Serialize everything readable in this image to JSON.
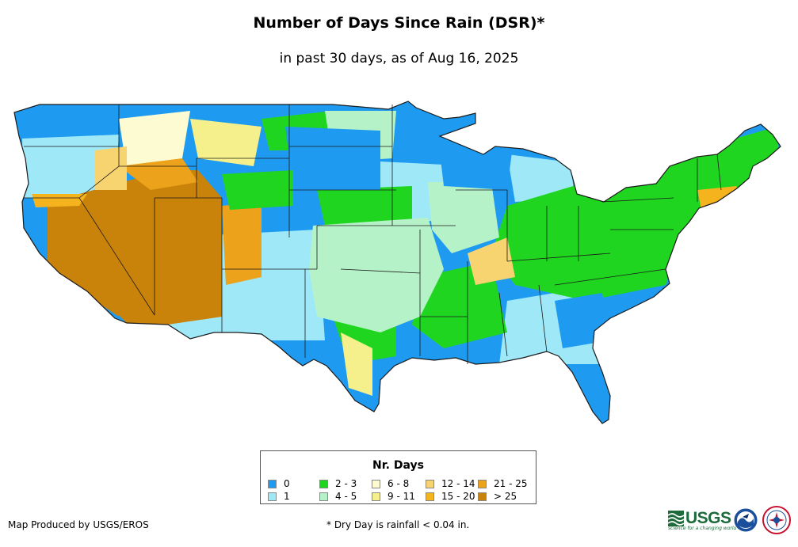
{
  "title": "Number of Days Since Rain (DSR)*",
  "subtitle": "in past 30 days, as of Aug 16, 2025",
  "legend": {
    "title": "Nr. Days",
    "items": [
      {
        "label": "0",
        "color": "#1e9bf0"
      },
      {
        "label": "1",
        "color": "#9fe8f8"
      },
      {
        "label": "2 - 3",
        "color": "#1fd51f"
      },
      {
        "label": "4 - 5",
        "color": "#b6f2c8"
      },
      {
        "label": "6 - 8",
        "color": "#fdfbd2"
      },
      {
        "label": "9 - 11",
        "color": "#f6f08c"
      },
      {
        "label": "12 - 14",
        "color": "#f8d470"
      },
      {
        "label": "15 - 20",
        "color": "#f5b41e"
      },
      {
        "label": "21 - 25",
        "color": "#eca21a"
      },
      {
        "label": "> 25",
        "color": "#c9820a"
      }
    ]
  },
  "footer": {
    "credit": "Map Produced by USGS/EROS",
    "note": "* Dry Day is rainfall < 0.04 in.",
    "logo_text": "USGS",
    "logo_tagline": "science for a changing world"
  },
  "logos": {
    "noaa": "noaa-seal",
    "nws": "national-weather-service-seal"
  }
}
